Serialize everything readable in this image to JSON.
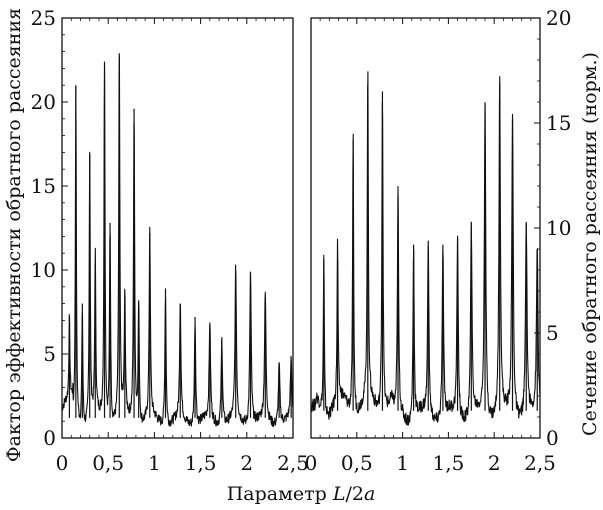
{
  "chart_data": {
    "type": "line",
    "xlabel_prefix": "Параметр ",
    "xlabel_var": "L",
    "xlabel_suffix": "/2",
    "xlabel_var2": "a",
    "ylabel_left": "Фактор эффективности обратного рассеяния",
    "ylabel_right": "Сечение обратного рассеяния (норм.)",
    "x_ticks": [
      "0",
      "0,5",
      "1",
      "1,5",
      "2",
      "2,5"
    ],
    "x_tick_values": [
      0,
      0.5,
      1,
      1.5,
      2,
      2.5
    ],
    "y_left_ticks": [
      "0",
      "5",
      "10",
      "15",
      "20",
      "25"
    ],
    "y_left_tick_values": [
      0,
      5,
      10,
      15,
      20,
      25
    ],
    "y_right_ticks": [
      "0",
      "5",
      "10",
      "15",
      "20"
    ],
    "y_right_tick_values": [
      0,
      5,
      10,
      15,
      20
    ],
    "panels": [
      {
        "name": "left",
        "xlim": [
          0,
          2.5
        ],
        "ylim": [
          0,
          25
        ],
        "baseline": 0.9,
        "peaks": [
          {
            "x": 0.08,
            "y": 5.8
          },
          {
            "x": 0.15,
            "y": 21.0
          },
          {
            "x": 0.22,
            "y": 8.0
          },
          {
            "x": 0.3,
            "y": 16.9
          },
          {
            "x": 0.36,
            "y": 10.4
          },
          {
            "x": 0.46,
            "y": 22.4
          },
          {
            "x": 0.52,
            "y": 12.8
          },
          {
            "x": 0.62,
            "y": 22.9
          },
          {
            "x": 0.68,
            "y": 8.0
          },
          {
            "x": 0.78,
            "y": 19.6
          },
          {
            "x": 0.83,
            "y": 8.2
          },
          {
            "x": 0.95,
            "y": 12.2
          },
          {
            "x": 1.12,
            "y": 8.9
          },
          {
            "x": 1.28,
            "y": 8.0
          },
          {
            "x": 1.44,
            "y": 7.2
          },
          {
            "x": 1.6,
            "y": 6.7
          },
          {
            "x": 1.73,
            "y": 6.0
          },
          {
            "x": 1.88,
            "y": 9.9
          },
          {
            "x": 2.04,
            "y": 9.9
          },
          {
            "x": 2.2,
            "y": 8.4
          },
          {
            "x": 2.35,
            "y": 4.5
          },
          {
            "x": 2.48,
            "y": 4.5
          }
        ]
      },
      {
        "name": "right",
        "xlim": [
          0,
          2.5
        ],
        "ylim": [
          0,
          20
        ],
        "baseline": 1.0,
        "peaks": [
          {
            "x": 0.14,
            "y": 8.5
          },
          {
            "x": 0.29,
            "y": 8.5
          },
          {
            "x": 0.46,
            "y": 14.2
          },
          {
            "x": 0.62,
            "y": 16.8
          },
          {
            "x": 0.78,
            "y": 16.5
          },
          {
            "x": 0.95,
            "y": 11.5
          },
          {
            "x": 1.12,
            "y": 9.2
          },
          {
            "x": 1.28,
            "y": 9.4
          },
          {
            "x": 1.44,
            "y": 9.2
          },
          {
            "x": 1.6,
            "y": 9.5
          },
          {
            "x": 1.75,
            "y": 10.3
          },
          {
            "x": 1.9,
            "y": 15.9
          },
          {
            "x": 2.06,
            "y": 16.9
          },
          {
            "x": 2.2,
            "y": 15.2
          },
          {
            "x": 2.35,
            "y": 10.3
          },
          {
            "x": 2.47,
            "y": 9.0
          }
        ]
      }
    ]
  }
}
